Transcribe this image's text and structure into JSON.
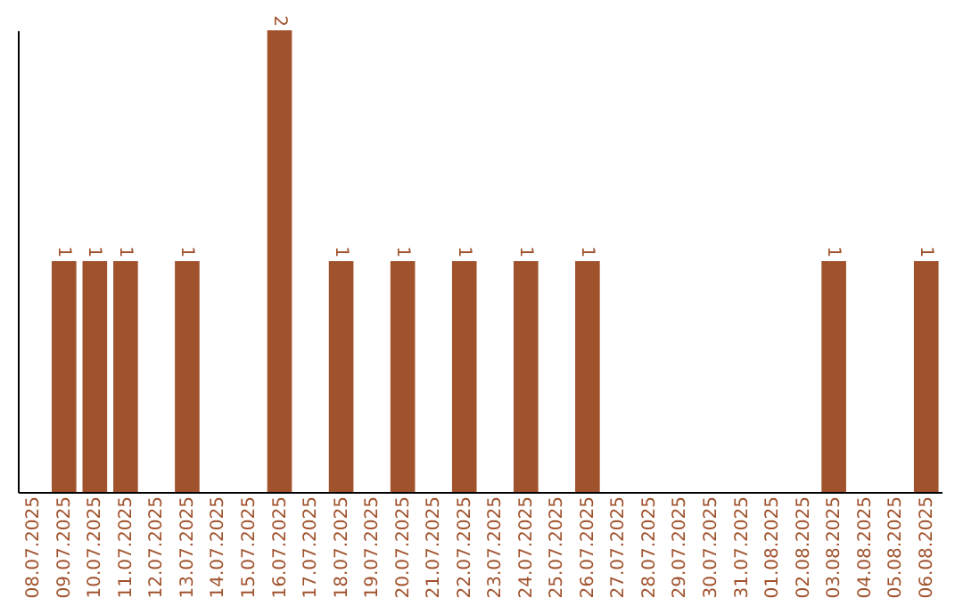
{
  "chart_data": {
    "type": "bar",
    "categories": [
      "08.07.2025",
      "09.07.2025",
      "10.07.2025",
      "11.07.2025",
      "12.07.2025",
      "13.07.2025",
      "14.07.2025",
      "15.07.2025",
      "16.07.2025",
      "17.07.2025",
      "18.07.2025",
      "19.07.2025",
      "20.07.2025",
      "21.07.2025",
      "22.07.2025",
      "23.07.2025",
      "24.07.2025",
      "25.07.2025",
      "26.07.2025",
      "27.07.2025",
      "28.07.2025",
      "29.07.2025",
      "30.07.2025",
      "31.07.2025",
      "01.08.2025",
      "02.08.2025",
      "03.08.2025",
      "04.08.2025",
      "05.08.2025",
      "06.08.2025"
    ],
    "values": [
      0,
      1,
      1,
      1,
      0,
      1,
      0,
      0,
      2,
      0,
      1,
      0,
      1,
      0,
      1,
      0,
      1,
      0,
      1,
      0,
      0,
      0,
      0,
      0,
      0,
      0,
      1,
      0,
      0,
      1
    ],
    "value_labels": [
      null,
      "1",
      "1",
      "1",
      null,
      "1",
      null,
      null,
      "2",
      null,
      "1",
      null,
      "1",
      null,
      "1",
      null,
      "1",
      null,
      "1",
      null,
      null,
      null,
      null,
      null,
      null,
      null,
      "1",
      null,
      null,
      "1"
    ],
    "color": "#a0522d",
    "tick_labels": "x",
    "grid": false
  }
}
